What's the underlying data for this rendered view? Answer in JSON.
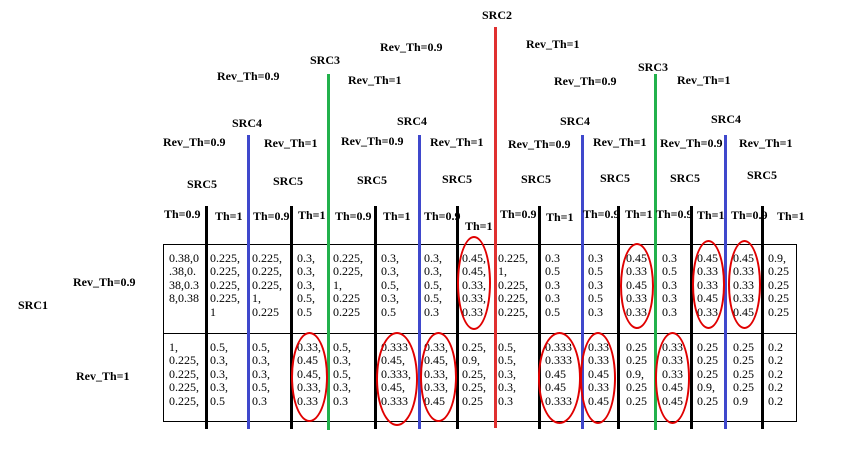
{
  "colors": {
    "src2_line": "#e03030",
    "src3_line": "#22b14c",
    "src4_line": "#3f48cc",
    "ellipse": "#e00000"
  },
  "headers": {
    "src1": "SRC1",
    "src1_rev_th_09": "Rev_Th=0.9",
    "src1_rev_th_1": "Rev_Th=1",
    "src2": "SRC2",
    "src2_rev_th_09": "Rev_Th=0.9",
    "src2_rev_th_1": "Rev_Th=1",
    "src3_a": "SRC3",
    "src3_b": "SRC3",
    "src3_a_rev_09": "Rev_Th=0.9",
    "src3_a_rev_1": "Rev_Th=1",
    "src3_b_rev_09": "Rev_Th=0.9",
    "src3_b_rev_1": "Rev_Th=1",
    "src4_1": "SRC4",
    "src4_2": "SRC4",
    "src4_3": "SRC4",
    "src4_4": "SRC4",
    "src4_rev": [
      "Rev_Th=0.9",
      "Rev_Th=1",
      "Rev_Th=0.9",
      "Rev_Th=1",
      "Rev_Th=0.9",
      "Rev_Th=1",
      "Rev_Th=0.9",
      "Rev_Th=1"
    ],
    "src5": [
      "SRC5",
      "SRC5",
      "SRC5",
      "SRC5",
      "SRC5",
      "SRC5",
      "SRC5",
      "SRC5"
    ],
    "th": [
      "Th=0.9",
      "Th=1",
      "Th=0.9",
      "Th=1",
      "Th=0.9",
      "Th=1",
      "Th=0.9",
      "Th=1",
      "Th=0.9",
      "Th=1",
      "Th=0.9",
      "Th=1",
      "Th=0.9",
      "Th=1",
      "Th=0.9",
      "Th=1"
    ]
  },
  "table": {
    "row1": [
      "0.38,0\n.38,0.\n38,0.3\n8,0.38",
      "0.225,\n0.225,\n0.225,\n0.225,\n1",
      "0.225,\n0.225,\n0.225,\n1,\n0.225",
      "0.3,\n0.3,\n0.3,\n0.5,\n0.5",
      "0.225,\n0.225,\n1,\n0.225\n0.225",
      "0.3,\n0.3,\n0.5,\n0.3,\n0.5",
      "0.3,\n0.3,\n0.5,\n0.5,\n0.3",
      "0.45,\n0.45,\n0.33,\n0.33,\n0.33",
      "0.225,\n1,\n0.225,\n0.225,\n0.225,",
      "0.3\n0.5\n0.3\n0.3\n0.5",
      "0.3\n0.5\n0.3\n0.5\n0.3",
      "0.45\n0.33\n0.45\n0.33\n0.33",
      "0.3\n0.5\n0.3\n0.3\n0.3",
      "0.45\n0.33\n0.33\n0.45\n0.33",
      "0.45\n0.33\n0.33\n0.33\n0.45",
      "0.9,\n0.25\n0.25\n0.25\n0.25"
    ],
    "row2": [
      "1,\n0.225,\n0.225,\n0.225,\n0.225,",
      "0.5,\n0.3,\n0.3,\n0.3,\n0.5",
      "0.5,\n0.3,\n0.3,\n0.5,\n0.3",
      "0.33,\n0.45\n0.45,\n0.33,\n0.33",
      "0.5,\n0.3,\n0.5,\n0.3,\n0.3",
      "0.333\n0.45,\n0.333,\n0.45,\n0.333",
      "0.33,\n0.45,\n0.33,\n0.33,\n0.45",
      "0.25,\n0.9,\n0.25,\n0.25,\n0.25",
      "0.5,\n0.5,\n0.3,\n0.3,\n0.3",
      "0.333\n0.333\n0.45\n0.45\n0.333",
      "0.33\n0.33\n0.45\n0.33\n0.45",
      "0.25\n0.25\n0.9,\n0.25\n0.25",
      "0.33\n0.33\n0.33\n0.45\n0.45",
      "0.25\n0.25\n0.25\n0.9,\n0.25",
      "0.25\n0.25\n0.25\n0.25\n0.9",
      "0.2\n0.2\n0.2\n0.2\n0.2"
    ]
  }
}
